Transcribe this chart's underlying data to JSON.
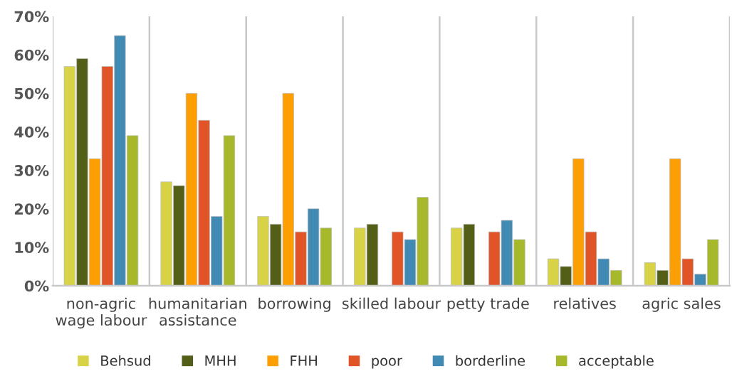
{
  "chart_data": {
    "type": "bar",
    "categories": [
      "non-agric\nwage labour",
      "humanitarian\nassistance",
      "borrowing",
      "skilled labour",
      "petty trade",
      "relatives",
      "agric sales"
    ],
    "series": [
      {
        "name": "Behsud",
        "color": "#d8d346",
        "values": [
          57,
          27,
          18,
          15,
          15,
          7,
          6
        ]
      },
      {
        "name": "MHH",
        "color": "#535e16",
        "values": [
          59,
          26,
          16,
          16,
          16,
          5,
          4
        ]
      },
      {
        "name": "FHH",
        "color": "#fd9e02",
        "values": [
          33,
          50,
          50,
          null,
          null,
          33,
          33
        ]
      },
      {
        "name": "poor",
        "color": "#e05428",
        "values": [
          57,
          43,
          14,
          14,
          14,
          14,
          7
        ]
      },
      {
        "name": "borderline",
        "color": "#418ab4",
        "values": [
          65,
          18,
          20,
          12,
          17,
          7,
          3
        ]
      },
      {
        "name": "acceptable",
        "color": "#a7b82a",
        "values": [
          39,
          39,
          15,
          23,
          12,
          4,
          12
        ]
      }
    ],
    "ylim": [
      0,
      70
    ],
    "yticks": [
      {
        "value": 0,
        "label": "0%"
      },
      {
        "value": 10,
        "label": "10%"
      },
      {
        "value": 20,
        "label": "20%"
      },
      {
        "value": 30,
        "label": "30%"
      },
      {
        "value": 40,
        "label": "40%"
      },
      {
        "value": 50,
        "label": "50%"
      },
      {
        "value": 60,
        "label": "60%"
      },
      {
        "value": 70,
        "label": "70%"
      }
    ],
    "grid": "x",
    "legend": "bottom"
  }
}
